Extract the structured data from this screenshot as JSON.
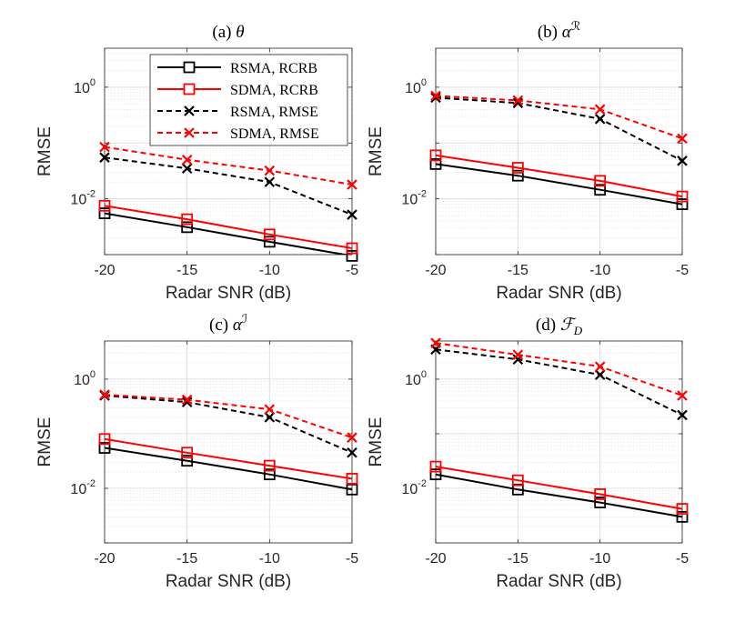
{
  "chart_data": {
    "type": "line",
    "shared": {
      "xlabel": "Radar SNR (dB)",
      "ylabel": "RMSE",
      "x": [
        -20,
        -15,
        -10,
        -5
      ],
      "x_tick_labels": [
        "-20",
        "-15",
        "-10",
        "-5"
      ],
      "y_tick_values": [
        0.01,
        1
      ],
      "y_tick_base": "10",
      "y_tick_exponents": [
        "-2",
        "0"
      ],
      "xlim": [
        -20,
        -5
      ],
      "ylim": [
        0.001,
        5
      ],
      "yscale": "log",
      "grid": true,
      "legend": {
        "placement": "top-right (panel a)",
        "entries": [
          "RSMA, RCRB",
          "SDMA, RCRB",
          "RSMA, RMSE",
          "SDMA, RMSE"
        ]
      }
    },
    "series_styles": [
      {
        "name": "RSMA, RCRB",
        "color": "#000000",
        "dash": "solid",
        "marker": "square"
      },
      {
        "name": "SDMA, RCRB",
        "color": "#ff0000",
        "dash": "solid",
        "marker": "square"
      },
      {
        "name": "RSMA, RMSE",
        "color": "#000000",
        "dash": "dashed",
        "marker": "x"
      },
      {
        "name": "SDMA, RMSE",
        "color": "#ff0000",
        "dash": "dashed",
        "marker": "x"
      }
    ],
    "panels": [
      {
        "title_prefix": "(a)",
        "title_symbol": "θ",
        "title_sup": "",
        "title_sub": "",
        "series": [
          {
            "name": "RSMA, RCRB",
            "values": [
              0.0055,
              0.0031,
              0.0017,
              0.00095
            ]
          },
          {
            "name": "SDMA, RCRB",
            "values": [
              0.0075,
              0.0043,
              0.0023,
              0.0013
            ]
          },
          {
            "name": "RSMA, RMSE",
            "values": [
              0.055,
              0.035,
              0.02,
              0.0052
            ]
          },
          {
            "name": "SDMA, RMSE",
            "values": [
              0.085,
              0.05,
              0.032,
              0.018
            ]
          }
        ]
      },
      {
        "title_prefix": "(b)",
        "title_symbol": "α",
        "title_sup": "ℛ",
        "title_sub": "",
        "series": [
          {
            "name": "RSMA, RCRB",
            "values": [
              0.042,
              0.026,
              0.0145,
              0.008
            ]
          },
          {
            "name": "SDMA, RCRB",
            "values": [
              0.06,
              0.036,
              0.021,
              0.011
            ]
          },
          {
            "name": "RSMA, RMSE",
            "values": [
              0.65,
              0.52,
              0.27,
              0.048
            ]
          },
          {
            "name": "SDMA, RMSE",
            "values": [
              0.7,
              0.58,
              0.4,
              0.12
            ]
          }
        ]
      },
      {
        "title_prefix": "(c)",
        "title_symbol": "α",
        "title_sup": "ℐ",
        "title_sub": "",
        "series": [
          {
            "name": "RSMA, RCRB",
            "values": [
              0.055,
              0.032,
              0.018,
              0.0095
            ]
          },
          {
            "name": "SDMA, RCRB",
            "values": [
              0.08,
              0.045,
              0.026,
              0.015
            ]
          },
          {
            "name": "RSMA, RMSE",
            "values": [
              0.5,
              0.38,
              0.2,
              0.045
            ]
          },
          {
            "name": "SDMA, RMSE",
            "values": [
              0.52,
              0.42,
              0.28,
              0.085
            ]
          }
        ]
      },
      {
        "title_prefix": "(d)",
        "title_symbol": "ℱ",
        "title_sup": "",
        "title_sub": "D",
        "series": [
          {
            "name": "RSMA, RCRB",
            "values": [
              0.018,
              0.0095,
              0.0055,
              0.003
            ]
          },
          {
            "name": "SDMA, RCRB",
            "values": [
              0.025,
              0.014,
              0.0078,
              0.0042
            ]
          },
          {
            "name": "RSMA, RMSE",
            "values": [
              3.5,
              2.3,
              1.2,
              0.22
            ]
          },
          {
            "name": "SDMA, RMSE",
            "values": [
              4.6,
              2.8,
              1.7,
              0.5
            ]
          }
        ]
      }
    ]
  }
}
